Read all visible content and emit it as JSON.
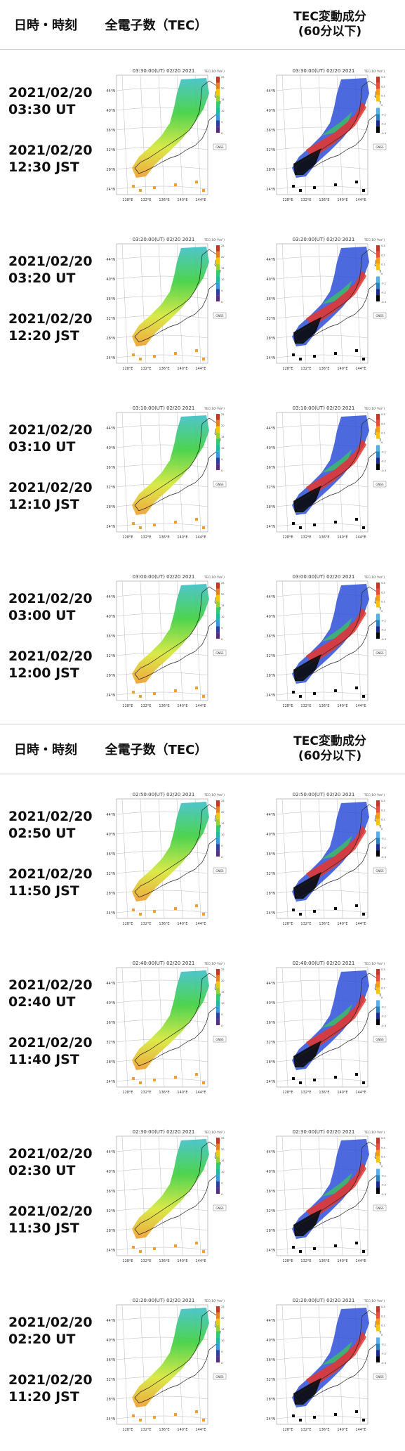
{
  "headers": {
    "col_datetime": "日時・時刻",
    "col_tec": "全電子数（TEC）",
    "col_dtec_line1": "TEC変動成分",
    "col_dtec_line2": "(60分以下)"
  },
  "rows": [
    {
      "utc_date": "2021/02/20",
      "utc_time": "03:30 UT",
      "jst_date": "2021/02/20",
      "jst_time": "12:30 JST",
      "map_title": "03:30:00(UT) 02/20 2021"
    },
    {
      "utc_date": "2021/02/20",
      "utc_time": "03:20 UT",
      "jst_date": "2021/02/20",
      "jst_time": "12:20 JST",
      "map_title": "03:20:00(UT) 02/20 2021"
    },
    {
      "utc_date": "2021/02/20",
      "utc_time": "03:10 UT",
      "jst_date": "2021/02/20",
      "jst_time": "12:10 JST",
      "map_title": "03:10:00(UT) 02/20 2021"
    },
    {
      "utc_date": "2021/02/20",
      "utc_time": "03:00 UT",
      "jst_date": "2021/02/20",
      "jst_time": "12:00 JST",
      "map_title": "03:00:00(UT) 02/20 2021"
    },
    {
      "utc_date": "2021/02/20",
      "utc_time": "02:50 UT",
      "jst_date": "2021/02/20",
      "jst_time": "11:50 JST",
      "map_title": "02:50:00(UT) 02/20 2021"
    },
    {
      "utc_date": "2021/02/20",
      "utc_time": "02:40 UT",
      "jst_date": "2021/02/20",
      "jst_time": "11:40 JST",
      "map_title": "02:40:00(UT) 02/20 2021"
    },
    {
      "utc_date": "2021/02/20",
      "utc_time": "02:30 UT",
      "jst_date": "2021/02/20",
      "jst_time": "11:30 JST",
      "map_title": "02:30:00(UT) 02/20 2021"
    },
    {
      "utc_date": "2021/02/20",
      "utc_time": "02:20 UT",
      "jst_date": "2021/02/20",
      "jst_time": "11:20 JST",
      "map_title": "02:20:00(UT) 02/20 2021"
    }
  ],
  "map_labels": {
    "lat_ticks": [
      "44°N",
      "40°N",
      "36°N",
      "32°N",
      "28°N",
      "24°N"
    ],
    "lon_ticks": [
      "128°E",
      "132°E",
      "136°E",
      "140°E",
      "144°E"
    ],
    "tec_unit": "TEC(10¹⁶/m²)",
    "dtec_unit": "TEC(10¹⁶/m²)",
    "tec_scale": [
      "25",
      "20",
      "15",
      "10",
      "5",
      "0"
    ],
    "dtec_scale": [
      "0.3",
      "0.2",
      "0.1",
      "0",
      "-0.1",
      "-0.2",
      "-0.3"
    ],
    "logo": "GNSS"
  },
  "colors": {
    "tec_colorbar": [
      "#c0392b",
      "#e67e22",
      "#f1c40f",
      "#9acd32",
      "#2ecc71",
      "#1abc9c",
      "#3498db",
      "#2c3e9e",
      "#5b2c83"
    ],
    "dtec_colorbar": [
      "#c0392b",
      "#e74c3c",
      "#f39c12",
      "#f1c40f",
      "#ffffff",
      "#5dade2",
      "#2980b9",
      "#1b2a8a",
      "#000000"
    ],
    "tec_green": "#3fd03f",
    "tec_yellow": "#d8e83a",
    "tec_orange": "#f0a030",
    "dtec_red": "#e8362a",
    "dtec_blue": "#2d4fd8",
    "dtec_dark": "#0a0a0a"
  }
}
